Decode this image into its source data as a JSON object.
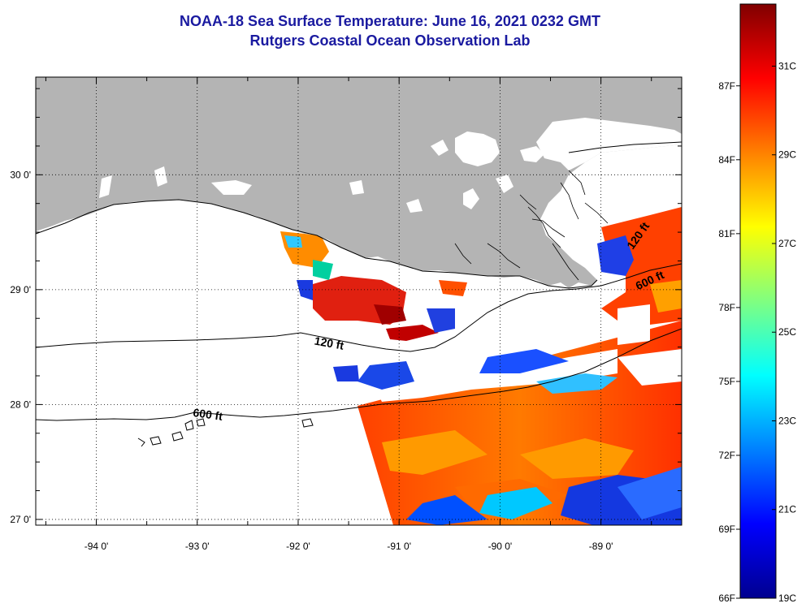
{
  "title": {
    "line1": "NOAA-18 Sea Surface Temperature:  June 16, 2021 0232 GMT",
    "line2": "Rutgers Coastal Ocean Observation Lab"
  },
  "map": {
    "lon_range": [
      -94.6,
      -88.2
    ],
    "lat_range": [
      26.95,
      30.85
    ],
    "lon_ticks": [
      {
        "value": -94,
        "label": "-94 0'"
      },
      {
        "value": -93,
        "label": "-93 0'"
      },
      {
        "value": -92,
        "label": "-92 0'"
      },
      {
        "value": -91,
        "label": "-91 0'"
      },
      {
        "value": -90,
        "label": "-90 0'"
      },
      {
        "value": -89,
        "label": "-89 0'"
      }
    ],
    "lat_ticks": [
      {
        "value": 27,
        "label": "27 0'"
      },
      {
        "value": 28,
        "label": "28 0'"
      },
      {
        "value": 29,
        "label": "29 0'"
      },
      {
        "value": 30,
        "label": "30 0'"
      }
    ],
    "contour_labels": [
      {
        "text": "120 ft",
        "lon": -91.7,
        "lat": 28.5,
        "angle": 10
      },
      {
        "text": "600 ft",
        "lon": -92.9,
        "lat": 27.88,
        "angle": 8
      },
      {
        "text": "120 ft",
        "lon": -88.6,
        "lat": 29.45,
        "angle": -55
      },
      {
        "text": "600 ft",
        "lon": -88.5,
        "lat": 29.05,
        "angle": -25
      }
    ],
    "land_color": "#b4b4b4"
  },
  "colorbar": {
    "min_c": 19,
    "max_c": 32.4,
    "colors": [
      "#00008f",
      "#0000ff",
      "#0080ff",
      "#00ffff",
      "#80ff80",
      "#ffff00",
      "#ff8000",
      "#ff0000",
      "#800000"
    ],
    "fahrenheit_labels": [
      "87F",
      "84F",
      "81F",
      "78F",
      "75F",
      "72F",
      "69F",
      "66F"
    ],
    "celsius_labels": [
      "31C",
      "29C",
      "27C",
      "25C",
      "23C",
      "21C",
      "19C"
    ]
  }
}
